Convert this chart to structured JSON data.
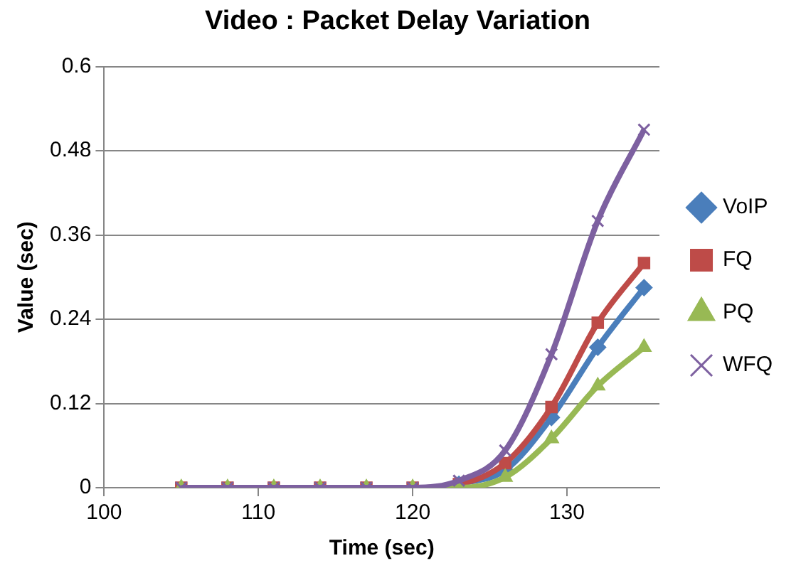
{
  "chart_data": {
    "type": "line",
    "title": "Video : Packet Delay Variation",
    "xlabel": "Time (sec)",
    "ylabel": "Value (sec)",
    "x": [
      105,
      108,
      111,
      114,
      117,
      120,
      123,
      126,
      129,
      132,
      135
    ],
    "xlim": [
      100,
      136
    ],
    "xticks": [
      100,
      110,
      120,
      130
    ],
    "ylim": [
      0,
      0.6
    ],
    "yticks": [
      0,
      0.12,
      0.24,
      0.36,
      0.48,
      0.6
    ],
    "grid": "y",
    "legend": "right",
    "line_style": "solid",
    "series": [
      {
        "name": "VoIP",
        "color": "#4a7ebb",
        "marker": "diamond",
        "values": [
          null,
          null,
          null,
          null,
          null,
          null,
          0.005,
          0.025,
          0.1,
          0.2,
          0.285
        ]
      },
      {
        "name": "FQ",
        "color": "#be4b48",
        "marker": "square",
        "values": [
          0,
          0,
          0,
          0,
          0,
          0,
          0.005,
          0.035,
          0.115,
          0.235,
          0.32
        ]
      },
      {
        "name": "PQ",
        "color": "#98b954",
        "marker": "triangle",
        "values": [
          0,
          0,
          0,
          0,
          0,
          0,
          0,
          0.015,
          0.07,
          0.145,
          0.2
        ]
      },
      {
        "name": "WFQ",
        "color": "#7d60a0",
        "marker": "cross",
        "values": [
          0,
          0,
          0,
          0,
          0,
          0,
          0.01,
          0.053,
          0.19,
          0.38,
          0.51
        ]
      }
    ]
  }
}
